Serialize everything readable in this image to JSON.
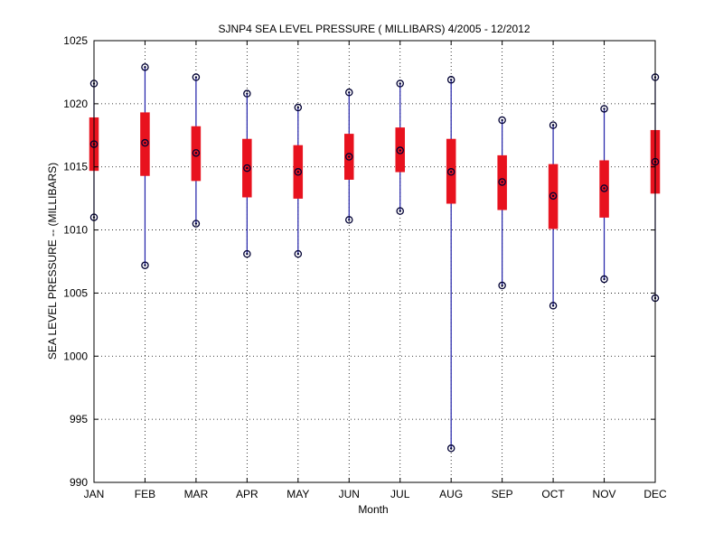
{
  "chart_data": {
    "type": "boxplot",
    "title": "SJNP4  SEA LEVEL PRESSURE ( MILLIBARS) 4/2005 - 12/2012",
    "xlabel": "Month",
    "ylabel": "SEA LEVEL PRESSURE -- (MILLIBARS)",
    "ylim": [
      990,
      1025
    ],
    "yticks": [
      990,
      995,
      1000,
      1005,
      1010,
      1015,
      1020,
      1025
    ],
    "grid": true,
    "categories": [
      "JAN",
      "FEB",
      "MAR",
      "APR",
      "MAY",
      "JUN",
      "JUL",
      "AUG",
      "SEP",
      "OCT",
      "NOV",
      "DEC"
    ],
    "series": [
      {
        "min": [
          1011.0,
          1007.2,
          1010.5,
          1008.1,
          1008.1,
          1010.8,
          1011.5,
          992.7,
          1005.6,
          1004.0,
          1006.1,
          1004.6
        ],
        "q1": [
          1014.7,
          1014.3,
          1013.9,
          1012.6,
          1012.5,
          1014.0,
          1014.6,
          1012.1,
          1011.6,
          1010.1,
          1011.0,
          1012.9
        ],
        "median": [
          1016.8,
          1016.9,
          1016.1,
          1014.9,
          1014.6,
          1015.8,
          1016.3,
          1014.6,
          1013.8,
          1012.7,
          1013.3,
          1015.4
        ],
        "q3": [
          1018.9,
          1019.3,
          1018.2,
          1017.2,
          1016.7,
          1017.6,
          1018.1,
          1017.2,
          1015.9,
          1015.2,
          1015.5,
          1017.9
        ],
        "max": [
          1021.6,
          1022.9,
          1022.1,
          1020.8,
          1019.7,
          1020.9,
          1021.6,
          1021.9,
          1018.7,
          1018.3,
          1019.6,
          1022.1
        ]
      }
    ],
    "colors": {
      "whisker": "#1f1fa8",
      "box": "#e8121e",
      "marker": "#000033",
      "grid": "#000000",
      "axis": "#000000"
    }
  }
}
